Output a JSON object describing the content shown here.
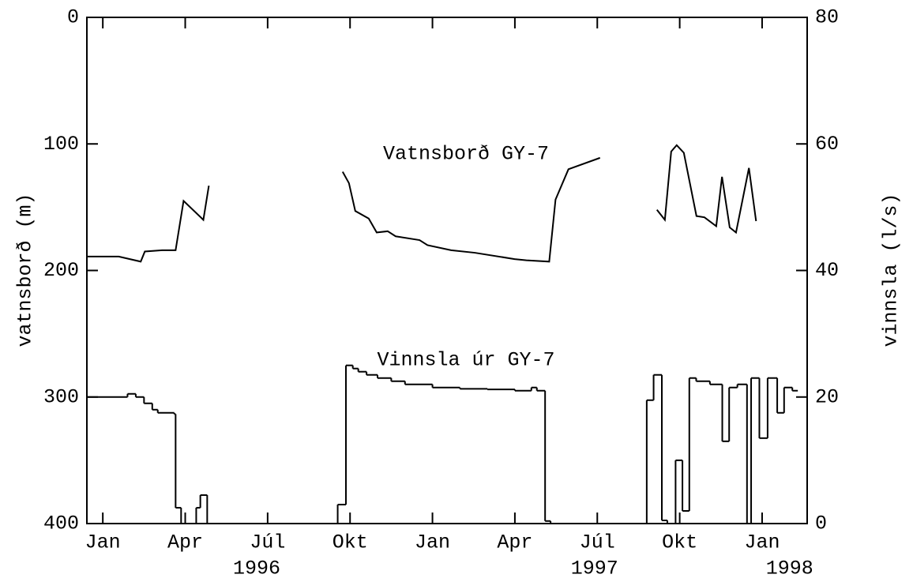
{
  "chart_data": {
    "type": "line",
    "ylabel": "vatnsborð (m)",
    "y2label": "vinnsla (l/s)",
    "xlim": [
      -0.58,
      25.64
    ],
    "xticks": [
      {
        "value": 0,
        "label": "Jan"
      },
      {
        "value": 3,
        "label": "Apr"
      },
      {
        "value": 6,
        "label": "Júl"
      },
      {
        "value": 9,
        "label": "Okt"
      },
      {
        "value": 12,
        "label": "Jan"
      },
      {
        "value": 15,
        "label": "Apr"
      },
      {
        "value": 18,
        "label": "Júl"
      },
      {
        "value": 21,
        "label": "Okt"
      },
      {
        "value": 24,
        "label": "Jan"
      }
    ],
    "x_year_labels": [
      {
        "value": 5.6,
        "label": "1996"
      },
      {
        "value": 17.9,
        "label": "1997"
      },
      {
        "value": 25.0,
        "label": "1998"
      }
    ],
    "ylim": [
      400,
      0
    ],
    "yticks": [
      0,
      100,
      200,
      300,
      400
    ],
    "y2lim": [
      0,
      80
    ],
    "y2ticks": [
      0,
      20,
      40,
      60,
      80
    ],
    "color": "#000000",
    "series": [
      {
        "name": "Vatnsborð GY-7",
        "axis": "y",
        "step": false,
        "x": [
          -0.58,
          0.58,
          1.38,
          1.53,
          2.16,
          2.65,
          2.94,
          3.66,
          3.86,
          null,
          8.73,
          8.96,
          9.19,
          9.68,
          9.97,
          10.37,
          10.66,
          11.53,
          11.82,
          12.68,
          13.54,
          14.99,
          15.42,
          16.25,
          16.48,
          16.95,
          18.1,
          null,
          20.17,
          20.46,
          20.69,
          20.89,
          21.15,
          21.61,
          21.9,
          22.33,
          22.54,
          22.82,
          23.05,
          23.52,
          23.78
        ],
        "values": [
          189,
          189,
          193,
          185,
          184,
          184,
          145,
          160,
          133,
          null,
          122,
          131,
          153,
          159,
          170,
          169,
          173,
          176,
          180,
          184,
          186,
          191,
          192,
          193,
          144,
          120,
          111,
          null,
          152,
          160,
          106,
          101,
          107,
          157,
          158,
          165,
          126,
          166,
          170,
          119,
          161
        ]
      },
      {
        "name": "Vinnsla úr GY-7",
        "axis": "y2",
        "step": true,
        "x": [
          -0.58,
          0.9,
          1.2,
          1.5,
          1.8,
          2.0,
          2.6,
          2.65,
          2.85,
          3.4,
          3.55,
          3.8,
          8.55,
          8.85,
          9.1,
          9.3,
          9.6,
          10,
          10.5,
          11,
          12,
          13,
          14,
          15,
          15.6,
          15.8,
          16.1,
          16.3,
          19.8,
          20.05,
          20.35,
          20.55,
          20.85,
          21.1,
          21.35,
          21.6,
          22.1,
          22.55,
          22.8,
          23.1,
          23.45,
          23.6,
          23.9,
          24.2,
          24.55,
          24.8,
          25.1,
          25.3
        ],
        "values": [
          20,
          20.5,
          20,
          19,
          18,
          17.5,
          17.3,
          2.5,
          0,
          2.5,
          4.5,
          0,
          3,
          25,
          24.5,
          24,
          23.5,
          23,
          22.5,
          22,
          21.5,
          21.3,
          21.2,
          21,
          21.5,
          21,
          0.4,
          0,
          19.5,
          23.5,
          0.5,
          0,
          10,
          2,
          23,
          22.5,
          22,
          13,
          21.5,
          22,
          0,
          23,
          13.5,
          23,
          17.5,
          21.5,
          21,
          21
        ]
      }
    ]
  }
}
